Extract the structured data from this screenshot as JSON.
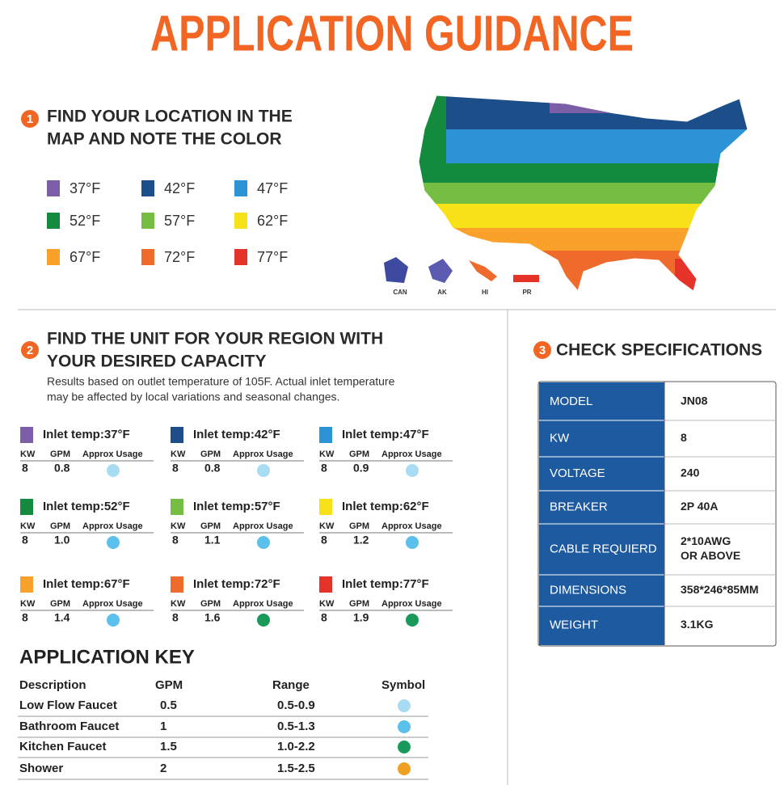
{
  "title": "APPLICATION GUIDANCE",
  "section1": {
    "number": "1",
    "heading": [
      "FIND YOUR LOCATION IN THE",
      "MAP AND NOTE THE COLOR"
    ],
    "legend": [
      {
        "label": "37°F",
        "color": "#7b5ea7"
      },
      {
        "label": "42°F",
        "color": "#1c4f8a"
      },
      {
        "label": "47°F",
        "color": "#2b93d6"
      },
      {
        "label": "52°F",
        "color": "#138a3e"
      },
      {
        "label": "57°F",
        "color": "#76be43"
      },
      {
        "label": "62°F",
        "color": "#f7e21a"
      },
      {
        "label": "67°F",
        "color": "#f9a12b"
      },
      {
        "label": "72°F",
        "color": "#ee6b2b"
      },
      {
        "label": "77°F",
        "color": "#e5332a"
      }
    ],
    "map_labels": [
      "CAN",
      "AK",
      "HI",
      "PR"
    ]
  },
  "section2": {
    "number": "2",
    "heading": [
      "FIND THE UNIT FOR YOUR REGION WITH",
      "YOUR DESIRED CAPACITY"
    ],
    "note": [
      "Results based on outlet temperature of 105F. Actual inlet temperature",
      "may be affected by local variations and seasonal changes."
    ],
    "columns": [
      "KW",
      "GPM",
      "Approx Usage"
    ],
    "units": [
      {
        "title": "Inlet temp:37°F",
        "color": "#7b5ea7",
        "kw": "8",
        "gpm": "0.8",
        "icon_color": "#a8dcf3"
      },
      {
        "title": "Inlet temp:42°F",
        "color": "#1c4f8a",
        "kw": "8",
        "gpm": "0.8",
        "icon_color": "#a8dcf3"
      },
      {
        "title": "Inlet temp:47°F",
        "color": "#2b93d6",
        "kw": "8",
        "gpm": "0.9",
        "icon_color": "#a8dcf3"
      },
      {
        "title": "Inlet temp:52°F",
        "color": "#138a3e",
        "kw": "8",
        "gpm": "1.0",
        "icon_color": "#5bc0eb"
      },
      {
        "title": "Inlet temp:57°F",
        "color": "#76be43",
        "kw": "8",
        "gpm": "1.1",
        "icon_color": "#5bc0eb"
      },
      {
        "title": "Inlet temp:62°F",
        "color": "#f7e21a",
        "kw": "8",
        "gpm": "1.2",
        "icon_color": "#5bc0eb"
      },
      {
        "title": "Inlet temp:67°F",
        "color": "#f9a12b",
        "kw": "8",
        "gpm": "1.4",
        "icon_color": "#5bc0eb"
      },
      {
        "title": "Inlet temp:72°F",
        "color": "#ee6b2b",
        "kw": "8",
        "gpm": "1.6",
        "icon_color": "#1a9a5a"
      },
      {
        "title": "Inlet temp:77°F",
        "color": "#e5332a",
        "kw": "8",
        "gpm": "1.9",
        "icon_color": "#1a9a5a"
      }
    ]
  },
  "application_key": {
    "title": "APPLICATION KEY",
    "columns": [
      "Description",
      "GPM",
      "Range",
      "Symbol"
    ],
    "rows": [
      {
        "description": "Low Flow Faucet",
        "gpm": "0.5",
        "range": "0.5-0.9",
        "symbol_color": "#a8dcf3"
      },
      {
        "description": "Bathroom Faucet",
        "gpm": "1",
        "range": "0.5-1.3",
        "symbol_color": "#5bc0eb"
      },
      {
        "description": "Kitchen Faucet",
        "gpm": "1.5",
        "range": "1.0-2.2",
        "symbol_color": "#1a9a5a"
      },
      {
        "description": "Shower",
        "gpm": "2",
        "range": "1.5-2.5",
        "symbol_color": "#f0a020"
      }
    ]
  },
  "section3": {
    "number": "3",
    "heading": "CHECK SPECIFICATIONS",
    "specs": [
      [
        "MODEL",
        [
          "JN08"
        ]
      ],
      [
        "KW",
        [
          "8"
        ]
      ],
      [
        "VOLTAGE",
        [
          "240"
        ]
      ],
      [
        "BREAKER",
        [
          "2P 40A"
        ]
      ],
      [
        "CABLE REQUIERD",
        [
          "2*10AWG",
          "OR ABOVE"
        ]
      ],
      [
        "DIMENSIONS",
        [
          "358*246*85MM"
        ]
      ],
      [
        "WEIGHT",
        [
          "3.1KG"
        ]
      ]
    ]
  }
}
